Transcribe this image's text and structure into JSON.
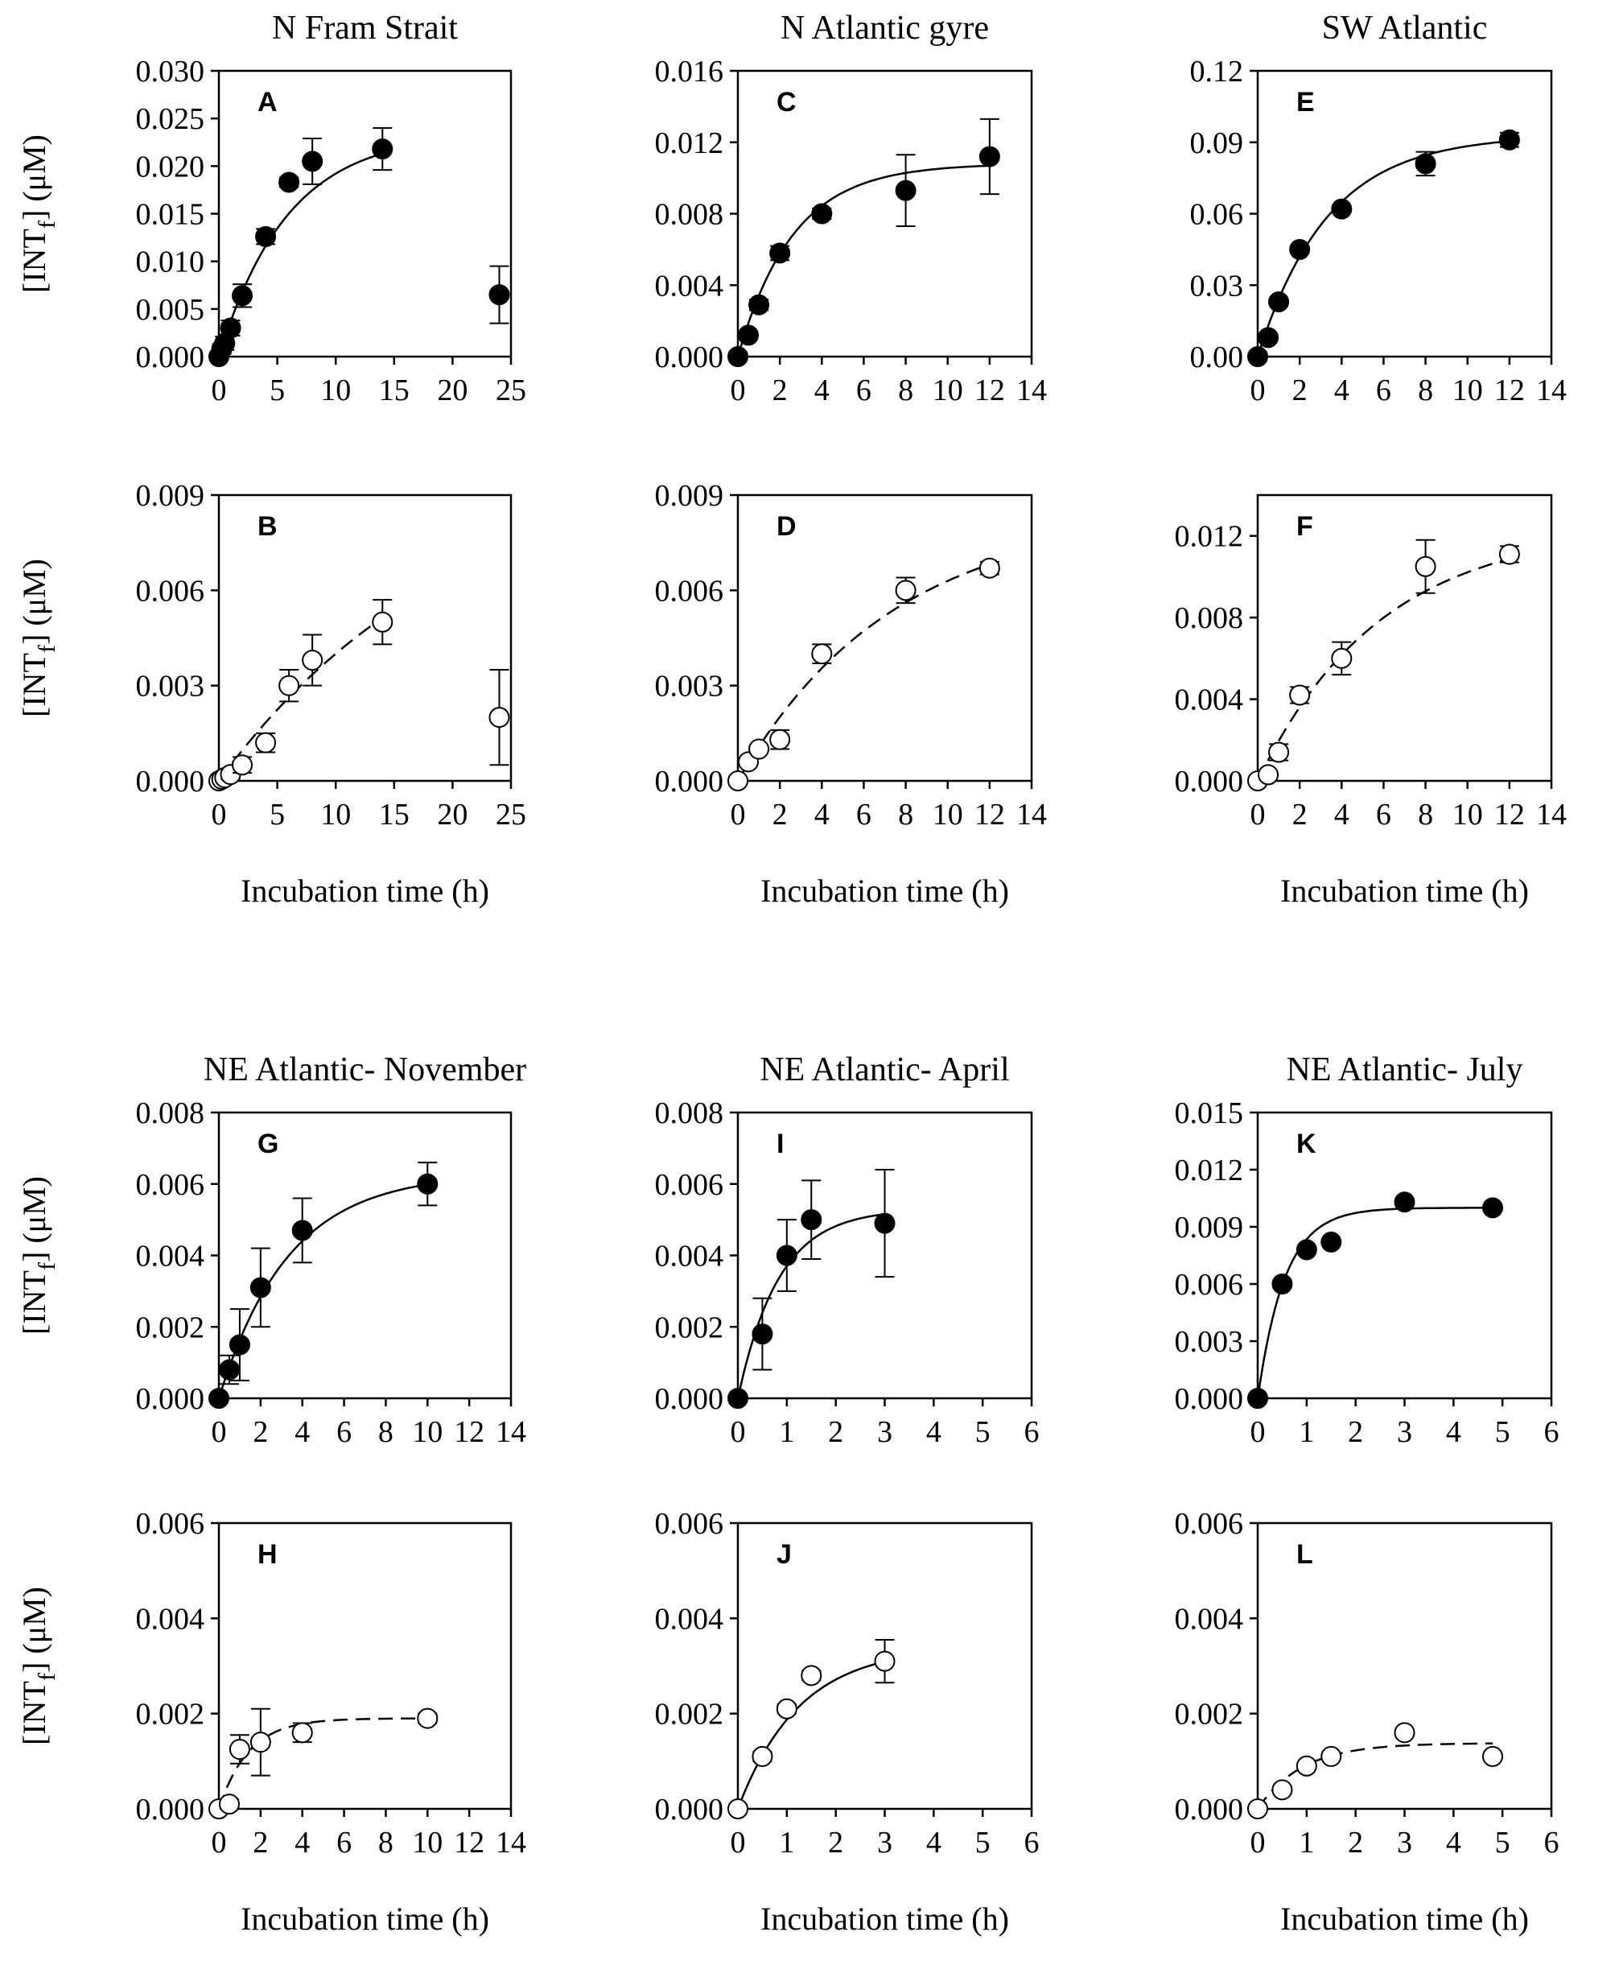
{
  "ylabel_main": "[INT",
  "ylabel_sub": "f",
  "ylabel_tail": "] (μM)",
  "xlabel": "Incubation time (h)",
  "chart_data": [
    {
      "panel": "A",
      "type": "scatter",
      "title": "N Fram Strait",
      "filled": true,
      "fit": "solid",
      "xlim": [
        0,
        25
      ],
      "xticks": [
        0,
        5,
        10,
        15,
        20,
        25
      ],
      "ylim": [
        0,
        0.03
      ],
      "yticks": [
        "0.000",
        "0.005",
        "0.010",
        "0.015",
        "0.020",
        "0.025",
        "0.030"
      ],
      "x": [
        0,
        0.25,
        0.5,
        1,
        2,
        4,
        6,
        8,
        14,
        24
      ],
      "y": [
        0,
        0.0008,
        0.0014,
        0.003,
        0.0064,
        0.0126,
        0.0183,
        0.0205,
        0.0218,
        0.0065
      ],
      "err": [
        0.0003,
        0.0005,
        0.0007,
        0.0008,
        0.0012,
        0.0008,
        0.0005,
        0.0024,
        0.0022,
        0.003
      ],
      "fit_params": {
        "a": 0.0235,
        "k": 0.17,
        "xmax": 14
      }
    },
    {
      "panel": "B",
      "type": "scatter",
      "title": "",
      "filled": false,
      "fit": "dashed",
      "xlim": [
        0,
        25
      ],
      "xticks": [
        0,
        5,
        10,
        15,
        20,
        25
      ],
      "ylim": [
        0,
        0.009
      ],
      "yticks": [
        "0.000",
        "0.003",
        "0.006",
        "0.009"
      ],
      "x": [
        0,
        0.25,
        0.5,
        1,
        2,
        4,
        6,
        8,
        14,
        24
      ],
      "y": [
        0,
        5e-05,
        0.0001,
        0.0002,
        0.0005,
        0.0012,
        0.003,
        0.0038,
        0.005,
        0.002
      ],
      "err": [
        0.0001,
        0.0001,
        0.0001,
        0.00015,
        0.00025,
        0.0003,
        0.0005,
        0.0008,
        0.0007,
        0.0015
      ],
      "fit_params": {
        "a": 0.0105,
        "k": 0.048,
        "xmax": 14
      }
    },
    {
      "panel": "C",
      "type": "scatter",
      "title": "N Atlantic gyre",
      "filled": true,
      "fit": "solid",
      "xlim": [
        0,
        14
      ],
      "xticks": [
        0,
        2,
        4,
        6,
        8,
        10,
        12,
        14
      ],
      "ylim": [
        0,
        0.016
      ],
      "yticks": [
        "0.000",
        "0.004",
        "0.008",
        "0.012",
        "0.016"
      ],
      "x": [
        0,
        0.5,
        1,
        2,
        4,
        8,
        12
      ],
      "y": [
        0,
        0.0012,
        0.0029,
        0.0058,
        0.008,
        0.0093,
        0.0112
      ],
      "err": [
        0,
        0.0002,
        0.0003,
        0.0004,
        0.0003,
        0.002,
        0.0021
      ],
      "fit_params": {
        "a": 0.0108,
        "k": 0.38,
        "xmax": 12
      }
    },
    {
      "panel": "D",
      "type": "scatter",
      "title": "",
      "filled": false,
      "fit": "dashed",
      "xlim": [
        0,
        14
      ],
      "xticks": [
        0,
        2,
        4,
        6,
        8,
        10,
        12,
        14
      ],
      "ylim": [
        0,
        0.009
      ],
      "yticks": [
        "0.000",
        "0.003",
        "0.006",
        "0.009"
      ],
      "x": [
        0,
        0.5,
        1,
        2,
        4,
        8,
        12
      ],
      "y": [
        0,
        0.0006,
        0.001,
        0.0013,
        0.004,
        0.006,
        0.0067
      ],
      "err": [
        0,
        0.0001,
        0.0001,
        0.0003,
        0.0003,
        0.0004,
        0.0002
      ],
      "fit_params": {
        "a": 0.0085,
        "k": 0.135,
        "xmax": 12
      }
    },
    {
      "panel": "E",
      "type": "scatter",
      "title": "SW Atlantic",
      "filled": true,
      "fit": "solid",
      "xlim": [
        0,
        14
      ],
      "xticks": [
        0,
        2,
        4,
        6,
        8,
        10,
        12,
        14
      ],
      "ylim": [
        0,
        0.12
      ],
      "yticks": [
        "0.00",
        "0.03",
        "0.06",
        "0.09",
        "0.12"
      ],
      "x": [
        0,
        0.5,
        1,
        2,
        4,
        8,
        12
      ],
      "y": [
        0,
        0.008,
        0.023,
        0.045,
        0.062,
        0.081,
        0.091
      ],
      "err": [
        0,
        0.001,
        0.001,
        0.001,
        0.001,
        0.005,
        0.003
      ],
      "fit_params": {
        "a": 0.093,
        "k": 0.3,
        "xmax": 12
      }
    },
    {
      "panel": "F",
      "type": "scatter",
      "title": "",
      "filled": false,
      "fit": "dashed",
      "xlim": [
        0,
        14
      ],
      "xticks": [
        0,
        2,
        4,
        6,
        8,
        10,
        12,
        14
      ],
      "ylim": [
        0,
        0.014
      ],
      "yticks": [
        "0.000",
        "0.004",
        "0.008",
        "0.012"
      ],
      "x": [
        0,
        0.5,
        1,
        2,
        4,
        8,
        12
      ],
      "y": [
        0,
        0.0003,
        0.0014,
        0.0042,
        0.006,
        0.0105,
        0.0111
      ],
      "err": [
        0,
        0.0001,
        0.0004,
        0.0004,
        0.0008,
        0.0013,
        0.0004
      ],
      "fit_params": {
        "a": 0.0125,
        "k": 0.17,
        "xmax": 12
      }
    },
    {
      "panel": "G",
      "type": "scatter",
      "title": "NE Atlantic- November",
      "filled": true,
      "fit": "solid",
      "xlim": [
        0,
        14
      ],
      "xticks": [
        0,
        2,
        4,
        6,
        8,
        10,
        12,
        14
      ],
      "ylim": [
        0,
        0.008
      ],
      "yticks": [
        "0.000",
        "0.002",
        "0.004",
        "0.006",
        "0.008"
      ],
      "x": [
        0,
        0.5,
        1,
        2,
        4,
        10
      ],
      "y": [
        0,
        0.0008,
        0.0015,
        0.0031,
        0.0047,
        0.006
      ],
      "err": [
        0,
        0.0004,
        0.001,
        0.0011,
        0.0009,
        0.0006
      ],
      "fit_params": {
        "a": 0.0063,
        "k": 0.3,
        "xmax": 10
      }
    },
    {
      "panel": "H",
      "type": "scatter",
      "title": "",
      "filled": false,
      "fit": "dashed",
      "xlim": [
        0,
        14
      ],
      "xticks": [
        0,
        2,
        4,
        6,
        8,
        10,
        12,
        14
      ],
      "ylim": [
        0,
        0.006
      ],
      "yticks": [
        "0.000",
        "0.002",
        "0.004",
        "0.006"
      ],
      "x": [
        0,
        0.5,
        1,
        2,
        4,
        10
      ],
      "y": [
        0,
        0.0001,
        0.00125,
        0.0014,
        0.0016,
        0.0019
      ],
      "err": [
        0,
        0.0001,
        0.0003,
        0.0007,
        0.0002,
        0.0001
      ],
      "fit_params": {
        "a": 0.0019,
        "k": 0.7,
        "xmax": 10
      }
    },
    {
      "panel": "I",
      "type": "scatter",
      "title": "NE Atlantic- April",
      "filled": true,
      "fit": "solid",
      "xlim": [
        0,
        6
      ],
      "xticks": [
        0,
        1,
        2,
        3,
        4,
        5,
        6
      ],
      "ylim": [
        0,
        0.008
      ],
      "yticks": [
        "0.000",
        "0.002",
        "0.004",
        "0.006",
        "0.008"
      ],
      "x": [
        0,
        0.5,
        1,
        1.5,
        3
      ],
      "y": [
        0,
        0.0018,
        0.004,
        0.005,
        0.0049
      ],
      "err": [
        0,
        0.001,
        0.001,
        0.0011,
        0.0015
      ],
      "fit_params": {
        "a": 0.0053,
        "k": 1.2,
        "xmax": 3
      }
    },
    {
      "panel": "J",
      "type": "scatter",
      "title": "",
      "filled": false,
      "fit": "solid",
      "xlim": [
        0,
        6
      ],
      "xticks": [
        0,
        1,
        2,
        3,
        4,
        5,
        6
      ],
      "ylim": [
        0,
        0.006
      ],
      "yticks": [
        "0.000",
        "0.002",
        "0.004",
        "0.006"
      ],
      "x": [
        0,
        0.5,
        1,
        1.5,
        3
      ],
      "y": [
        0,
        0.0011,
        0.0021,
        0.0028,
        0.0031
      ],
      "err": [
        0,
        0.0001,
        0.0001,
        0.0001,
        0.00045
      ],
      "fit_params": {
        "a": 0.0034,
        "k": 0.8,
        "xmax": 3
      }
    },
    {
      "panel": "K",
      "type": "scatter",
      "title": "NE Atlantic- July",
      "filled": true,
      "fit": "solid",
      "xlim": [
        0,
        6
      ],
      "xticks": [
        0,
        1,
        2,
        3,
        4,
        5,
        6
      ],
      "ylim": [
        0,
        0.015
      ],
      "yticks": [
        "0.000",
        "0.003",
        "0.006",
        "0.009",
        "0.012",
        "0.015"
      ],
      "x": [
        0,
        0.5,
        1,
        1.5,
        3,
        4.8
      ],
      "y": [
        0,
        0.006,
        0.0078,
        0.0082,
        0.0103,
        0.01
      ],
      "err": [
        0,
        0,
        0,
        0,
        0,
        0
      ],
      "fit_params": {
        "a": 0.01,
        "k": 1.8,
        "xmax": 4.8
      }
    },
    {
      "panel": "L",
      "type": "scatter",
      "title": "",
      "filled": false,
      "fit": "dashed",
      "xlim": [
        0,
        6
      ],
      "xticks": [
        0,
        1,
        2,
        3,
        4,
        5,
        6
      ],
      "ylim": [
        0,
        0.006
      ],
      "yticks": [
        "0.000",
        "0.002",
        "0.004",
        "0.006"
      ],
      "x": [
        0,
        0.5,
        1,
        1.5,
        3,
        4.8
      ],
      "y": [
        0,
        0.0004,
        0.0009,
        0.0011,
        0.0016,
        0.0011
      ],
      "err": [
        0,
        0,
        0,
        0,
        0,
        0
      ],
      "fit_params": {
        "a": 0.00138,
        "k": 1.1,
        "xmax": 4.8
      }
    }
  ]
}
